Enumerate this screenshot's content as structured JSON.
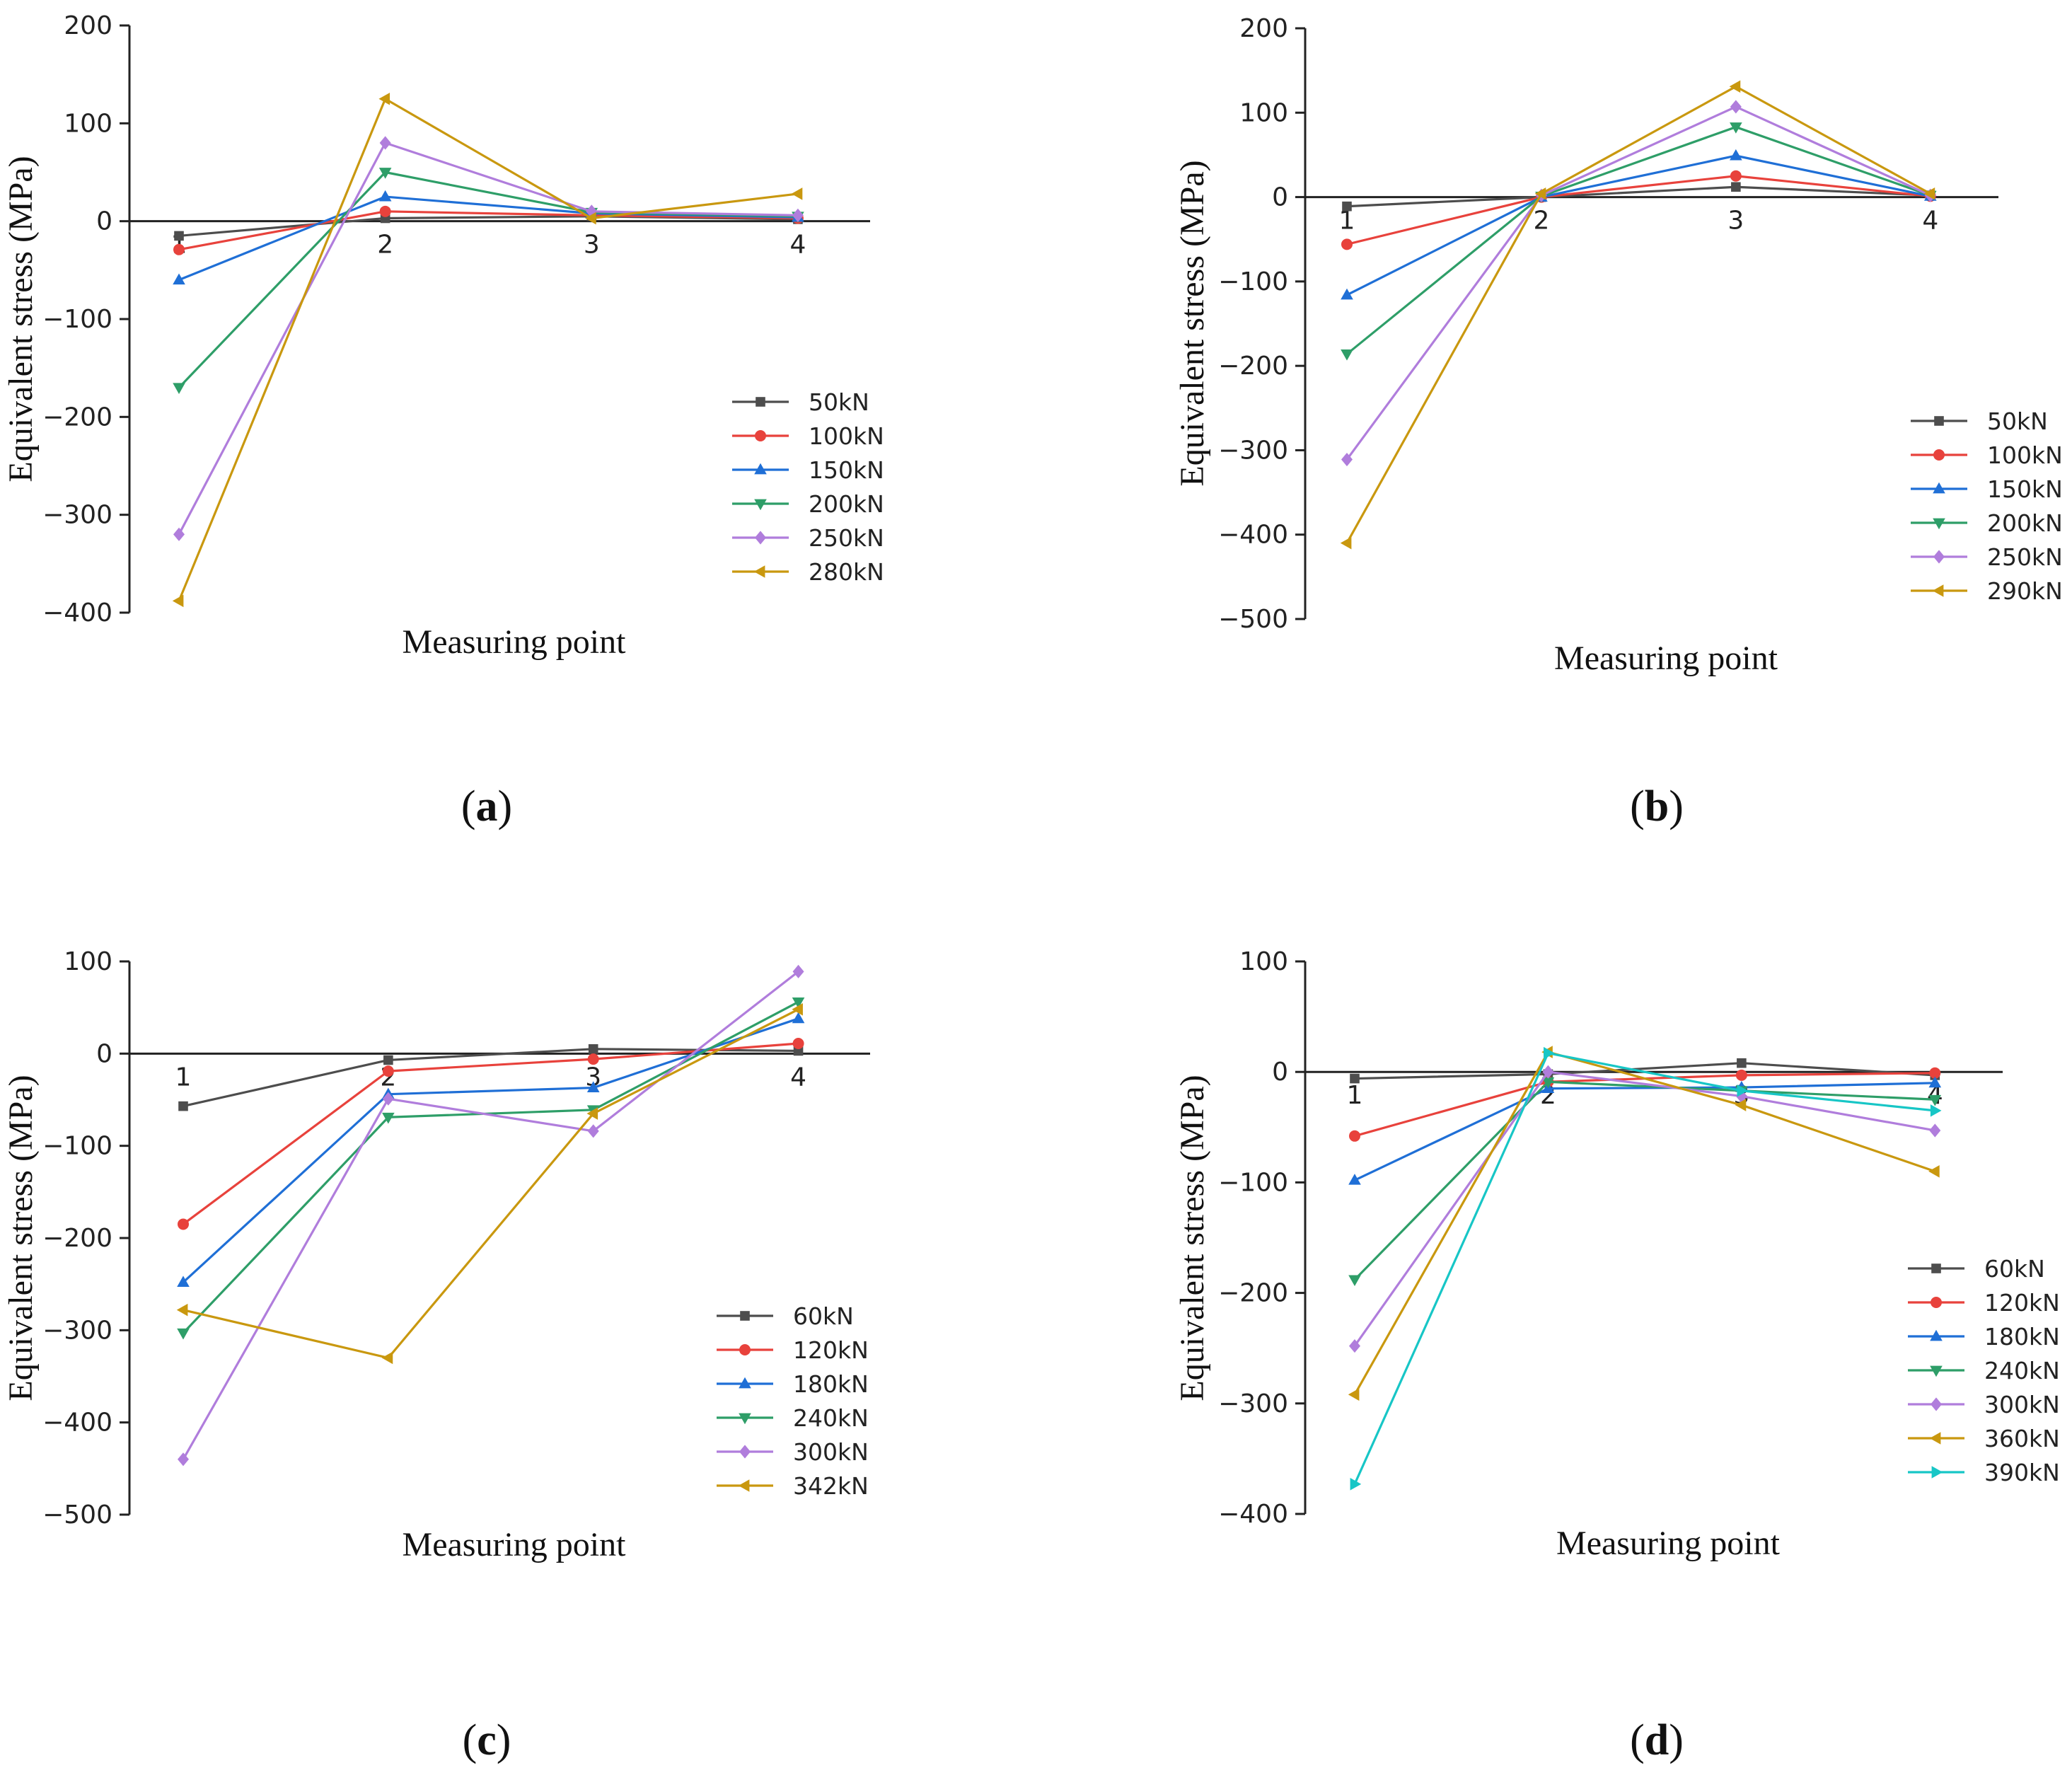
{
  "colors": {
    "axis": "#222222",
    "s1": "#4d4d4d",
    "s2": "#e8423c",
    "s3": "#1f6fd6",
    "s4": "#2e9e68",
    "s5": "#b07ddc",
    "s6": "#c9980f",
    "s7": "#17c6c6"
  },
  "chart_data": [
    {
      "type": "line",
      "panel": "a",
      "panel_label": "a",
      "x": [
        1,
        2,
        3,
        4
      ],
      "xlabel": "Measuring point",
      "ylabel": "Equivalent stress (MPa)",
      "ylim": [
        -400,
        200
      ],
      "yticks": [
        -400,
        -300,
        -200,
        -100,
        0,
        100,
        200
      ],
      "xticks": [
        "1",
        "2",
        "3",
        "4"
      ],
      "legend": "bottom-right",
      "series": [
        {
          "name": "50kN",
          "color": "s1",
          "marker": "square",
          "values": [
            -15,
            3,
            5,
            2
          ]
        },
        {
          "name": "100kN",
          "color": "s2",
          "marker": "circle",
          "values": [
            -29,
            10,
            6,
            3
          ]
        },
        {
          "name": "150kN",
          "color": "s3",
          "marker": "triangle-up",
          "values": [
            -60,
            25,
            8,
            4
          ]
        },
        {
          "name": "200kN",
          "color": "s4",
          "marker": "triangle-down",
          "values": [
            -170,
            50,
            9,
            5
          ]
        },
        {
          "name": "250kN",
          "color": "s5",
          "marker": "diamond",
          "values": [
            -320,
            80,
            10,
            6
          ]
        },
        {
          "name": "280kN",
          "color": "s6",
          "marker": "triangle-left",
          "values": [
            -388,
            125,
            3,
            28
          ]
        }
      ]
    },
    {
      "type": "line",
      "panel": "b",
      "panel_label": "b",
      "x": [
        1,
        2,
        3,
        4
      ],
      "xlabel": "Measuring point",
      "ylabel": "Equivalent stress (MPa)",
      "ylim": [
        -500,
        200
      ],
      "yticks": [
        -500,
        -400,
        -300,
        -200,
        -100,
        0,
        100,
        200
      ],
      "xticks": [
        "1",
        "2",
        "3",
        "4"
      ],
      "legend": "bottom-right",
      "series": [
        {
          "name": "50kN",
          "color": "s1",
          "marker": "square",
          "values": [
            -11,
            0,
            12,
            2
          ]
        },
        {
          "name": "100kN",
          "color": "s2",
          "marker": "circle",
          "values": [
            -56,
            0,
            25,
            1
          ]
        },
        {
          "name": "150kN",
          "color": "s3",
          "marker": "triangle-up",
          "values": [
            -116,
            0,
            49,
            1
          ]
        },
        {
          "name": "200kN",
          "color": "s4",
          "marker": "triangle-down",
          "values": [
            -186,
            1,
            83,
            2
          ]
        },
        {
          "name": "250kN",
          "color": "s5",
          "marker": "diamond",
          "values": [
            -311,
            2,
            107,
            2
          ]
        },
        {
          "name": "290kN",
          "color": "s6",
          "marker": "triangle-left",
          "values": [
            -410,
            4,
            131,
            4
          ]
        }
      ]
    },
    {
      "type": "line",
      "panel": "c",
      "panel_label": "c",
      "x": [
        1,
        2,
        3,
        4
      ],
      "xlabel": "Measuring point",
      "ylabel": "Equivalent stress (MPa)",
      "ylim": [
        -500,
        100
      ],
      "yticks": [
        -500,
        -400,
        -300,
        -200,
        -100,
        0,
        100
      ],
      "xticks": [
        "1",
        "2",
        "3",
        "4"
      ],
      "legend": "bottom-right",
      "series": [
        {
          "name": "60kN",
          "color": "s1",
          "marker": "square",
          "values": [
            -57,
            -7,
            5,
            3
          ]
        },
        {
          "name": "120kN",
          "color": "s2",
          "marker": "circle",
          "values": [
            -185,
            -19,
            -6,
            11
          ]
        },
        {
          "name": "180kN",
          "color": "s3",
          "marker": "triangle-up",
          "values": [
            -248,
            -44,
            -37,
            38
          ]
        },
        {
          "name": "240kN",
          "color": "s4",
          "marker": "triangle-down",
          "values": [
            -303,
            -69,
            -61,
            56
          ]
        },
        {
          "name": "300kN",
          "color": "s5",
          "marker": "diamond",
          "values": [
            -440,
            -49,
            -84,
            89
          ]
        },
        {
          "name": "342kN",
          "color": "s6",
          "marker": "triangle-left",
          "values": [
            -278,
            -330,
            -65,
            48
          ]
        }
      ]
    },
    {
      "type": "line",
      "panel": "d",
      "panel_label": "d",
      "x": [
        1,
        2,
        3,
        4
      ],
      "xlabel": "Measuring point",
      "ylabel": "Equivalent stress (MPa)",
      "ylim": [
        -400,
        100
      ],
      "yticks": [
        -400,
        -300,
        -200,
        -100,
        0,
        100
      ],
      "xticks": [
        "1",
        "2",
        "3",
        "4"
      ],
      "legend": "bottom-right",
      "series": [
        {
          "name": "60kN",
          "color": "s1",
          "marker": "square",
          "values": [
            -6,
            -2,
            8,
            -3
          ]
        },
        {
          "name": "120kN",
          "color": "s2",
          "marker": "circle",
          "values": [
            -58,
            -9,
            -3,
            -1
          ]
        },
        {
          "name": "180kN",
          "color": "s3",
          "marker": "triangle-up",
          "values": [
            -98,
            -15,
            -14,
            -10
          ]
        },
        {
          "name": "240kN",
          "color": "s4",
          "marker": "triangle-down",
          "values": [
            -188,
            -9,
            -17,
            -25
          ]
        },
        {
          "name": "300kN",
          "color": "s5",
          "marker": "diamond",
          "values": [
            -248,
            0,
            -22,
            -53
          ]
        },
        {
          "name": "360kN",
          "color": "s6",
          "marker": "triangle-left",
          "values": [
            -292,
            18,
            -30,
            -90
          ]
        },
        {
          "name": "390kN",
          "color": "s7",
          "marker": "triangle-right",
          "values": [
            -373,
            17,
            -17,
            -35
          ]
        }
      ]
    }
  ]
}
